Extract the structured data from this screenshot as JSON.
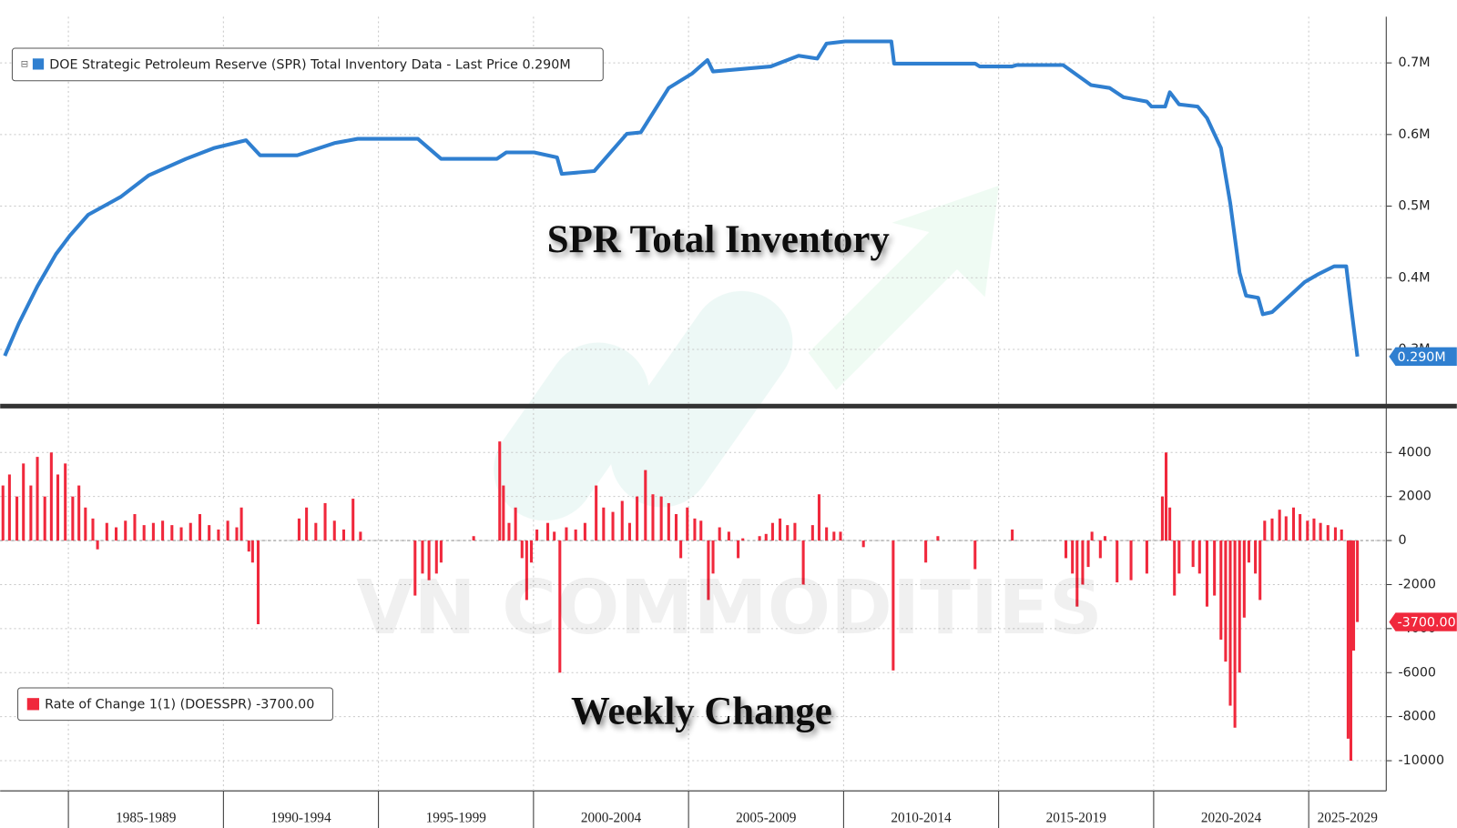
{
  "chart_data": [
    {
      "type": "line",
      "annotation": "SPR Total Inventory",
      "x": [
        1982.95,
        1983.4,
        1984.0,
        1984.6,
        1985.05,
        1985.64,
        1986.69,
        1987.59,
        1988.79,
        1989.69,
        1990.73,
        1991.18,
        1992.38,
        1993.58,
        1994.33,
        1996.27,
        1997.02,
        1998.82,
        1999.12,
        2000.02,
        2000.76,
        2000.91,
        2001.96,
        2003.01,
        2003.46,
        2004.36,
        2005.11,
        2005.61,
        2005.79,
        2007.65,
        2008.55,
        2009.15,
        2009.45,
        2010.05,
        2011.54,
        2011.63,
        2014.24,
        2014.39,
        2015.43,
        2015.58,
        2017.08,
        2017.98,
        2018.58,
        2019.03,
        2019.78,
        2019.93,
        2020.37,
        2020.52,
        2020.82,
        2021.42,
        2021.72,
        2022.17,
        2022.47,
        2022.77,
        2022.98,
        2023.37,
        2023.52,
        2023.82,
        2024.87,
        2025.31,
        2025.82,
        2026.21,
        2026.36,
        2026.57
      ],
      "series": [
        {
          "name": "DOE Strategic Petroleum Reserve (SPR) Total Inventory Data - Last Price 0.290M",
          "color": "#2f7fd0",
          "values": [
            0.291,
            0.336,
            0.388,
            0.433,
            0.459,
            0.488,
            0.513,
            0.543,
            0.566,
            0.581,
            0.592,
            0.571,
            0.571,
            0.588,
            0.594,
            0.594,
            0.566,
            0.566,
            0.575,
            0.575,
            0.568,
            0.545,
            0.549,
            0.601,
            0.603,
            0.665,
            0.685,
            0.704,
            0.688,
            0.695,
            0.71,
            0.706,
            0.727,
            0.73,
            0.73,
            0.699,
            0.699,
            0.695,
            0.695,
            0.697,
            0.697,
            0.669,
            0.665,
            0.652,
            0.646,
            0.639,
            0.639,
            0.659,
            0.642,
            0.639,
            0.623,
            0.581,
            0.504,
            0.407,
            0.375,
            0.372,
            0.349,
            0.352,
            0.394,
            0.405,
            0.416,
            0.416,
            0.362,
            0.29
          ]
        }
      ],
      "last_price": {
        "value": 0.29,
        "label": "0.290M"
      },
      "ylim": [
        0.224,
        0.7645
      ],
      "yticks": [
        {
          "value": 0.3,
          "label": "0.3M"
        },
        {
          "value": 0.4,
          "label": "0.4M"
        },
        {
          "value": 0.5,
          "label": "0.5M"
        },
        {
          "value": 0.6,
          "label": "0.6M"
        },
        {
          "value": 0.7,
          "label": "0.7M"
        }
      ],
      "grid": true
    },
    {
      "type": "bar",
      "annotation": "Weekly Change",
      "watermark": "VN COMMODITIES",
      "x": [
        1982.89,
        1983.1,
        1983.34,
        1983.55,
        1983.79,
        1984.0,
        1984.24,
        1984.45,
        1984.66,
        1984.9,
        1985.14,
        1985.34,
        1985.55,
        1985.79,
        1985.94,
        1986.24,
        1986.54,
        1986.84,
        1987.14,
        1987.44,
        1987.74,
        1988.04,
        1988.34,
        1988.64,
        1988.94,
        1989.24,
        1989.54,
        1989.84,
        1990.14,
        1990.43,
        1990.58,
        1990.82,
        1990.94,
        1991.12,
        1992.44,
        1992.68,
        1992.98,
        1993.28,
        1993.58,
        1993.88,
        1994.18,
        1994.42,
        1996.18,
        1996.42,
        1996.63,
        1996.87,
        1997.02,
        1998.07,
        1998.91,
        1999.03,
        1999.21,
        1999.42,
        1999.63,
        1999.78,
        1999.93,
        2000.11,
        2000.46,
        2000.67,
        2000.85,
        2001.06,
        2001.36,
        2001.66,
        2002.02,
        2002.26,
        2002.56,
        2002.86,
        2003.1,
        2003.34,
        2003.61,
        2003.85,
        2004.12,
        2004.36,
        2004.6,
        2004.75,
        2004.96,
        2005.2,
        2005.4,
        2005.64,
        2005.79,
        2006.0,
        2006.3,
        2006.6,
        2006.75,
        2007.29,
        2007.5,
        2007.71,
        2007.95,
        2008.19,
        2008.43,
        2008.7,
        2009.0,
        2009.21,
        2009.45,
        2009.69,
        2009.9,
        2010.64,
        2011.6,
        2012.65,
        2013.04,
        2014.24,
        2015.44,
        2017.17,
        2017.38,
        2017.53,
        2017.71,
        2017.89,
        2018.01,
        2018.28,
        2018.43,
        2018.82,
        2019.27,
        2019.78,
        2020.28,
        2020.4,
        2020.52,
        2020.67,
        2020.82,
        2021.27,
        2021.48,
        2021.72,
        2021.96,
        2022.17,
        2022.32,
        2022.47,
        2022.62,
        2022.77,
        2022.92,
        2023.07,
        2023.28,
        2023.43,
        2023.58,
        2023.82,
        2024.06,
        2024.27,
        2024.51,
        2024.72,
        2024.96,
        2025.17,
        2025.38,
        2025.62,
        2025.86,
        2026.06,
        2026.27,
        2026.36,
        2026.45,
        2026.57
      ],
      "series": [
        {
          "name": "Rate of Change 1(1) (DOESSPR) -3700.00",
          "color": "#f0283c",
          "values": [
            2500,
            3000,
            2000,
            3500,
            2500,
            3800,
            2000,
            4000,
            3000,
            3500,
            2000,
            2500,
            1500,
            1000,
            -400,
            800,
            600,
            900,
            1200,
            700,
            800,
            900,
            700,
            600,
            800,
            1200,
            700,
            500,
            900,
            600,
            1500,
            -500,
            -1000,
            -3800,
            1000,
            1500,
            800,
            1700,
            900,
            500,
            1900,
            400,
            -2500,
            -1500,
            -1800,
            -1500,
            -1000,
            200,
            4500,
            2500,
            800,
            1500,
            -800,
            -2700,
            -1000,
            500,
            800,
            400,
            -6000,
            600,
            500,
            800,
            2500,
            1500,
            1300,
            1800,
            800,
            2000,
            3200,
            2100,
            2000,
            1700,
            1200,
            -800,
            1500,
            1000,
            900,
            -2700,
            -1500,
            600,
            400,
            -800,
            100,
            200,
            300,
            800,
            1000,
            700,
            800,
            -2000,
            700,
            2100,
            600,
            400,
            400,
            -300,
            -5900,
            -1000,
            200,
            -1300,
            500,
            -800,
            -1500,
            -3000,
            -2000,
            -1200,
            400,
            -800,
            200,
            -1900,
            -1800,
            -1500,
            2000,
            4000,
            1500,
            -2500,
            -1500,
            -1200,
            -1500,
            -3000,
            -2500,
            -4500,
            -5500,
            -7500,
            -8500,
            -6000,
            -3500,
            -1000,
            -1500,
            -2700,
            900,
            1000,
            1400,
            1100,
            1500,
            1200,
            900,
            1000,
            800,
            700,
            600,
            500,
            -9000,
            -10000,
            -5000,
            -3700
          ]
        }
      ],
      "last_price": {
        "value": -3700,
        "label": "-3700.00"
      },
      "ylim": [
        -11370,
        6000
      ],
      "yticks": [
        -10000,
        -8000,
        -6000,
        -4000,
        -2000,
        0,
        2000,
        4000
      ],
      "xlim": [
        1982.8,
        2027.5
      ],
      "xticks": [
        {
          "value": 1985,
          "label": "1985-1989"
        },
        {
          "value": 1990,
          "label": "1990-1994"
        },
        {
          "value": 1995,
          "label": "1995-1999"
        },
        {
          "value": 2000,
          "label": "2000-2004"
        },
        {
          "value": 2005,
          "label": "2005-2009"
        },
        {
          "value": 2010,
          "label": "2010-2014"
        },
        {
          "value": 2015,
          "label": "2015-2019"
        },
        {
          "value": 2020,
          "label": "2020-2024"
        },
        {
          "value": 2025,
          "label": "2025-2029"
        }
      ],
      "grid": true
    }
  ]
}
